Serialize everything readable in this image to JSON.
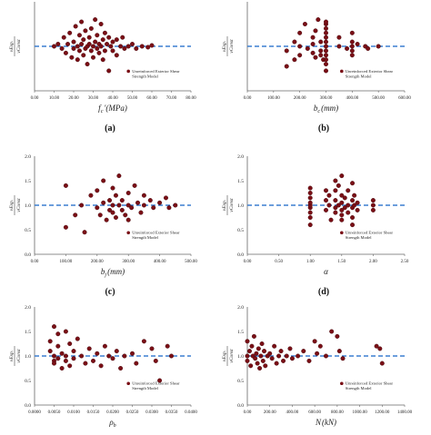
{
  "colors": {
    "point_fill": "#7a0f16",
    "point_stroke": "#3d0509",
    "reference_line": "#3b7fd0",
    "axis": "#666666",
    "text": "#222222"
  },
  "chart_data": [
    {
      "type": "scatter",
      "panel_label": "(a)",
      "xlabel": "f_c′ (MPa)",
      "xlabel_main": "f",
      "xlabel_sub": "c",
      "xlabel_unit": "′(MPa)",
      "ylabel": "v_Exp / v_Const",
      "ylabel_num": "vExp.",
      "ylabel_den": "vConst",
      "legend": "Unreinforced Exterior Shear Strength Model",
      "legend_line1": "Unreinforced Exterior Shear",
      "legend_line2": "Strength Model",
      "xlim": [
        0,
        80
      ],
      "ylim": [
        0,
        2
      ],
      "xticks": [
        "0.00",
        "10.00",
        "20.00",
        "30.00",
        "40.00",
        "50.00",
        "60.00",
        "70.00",
        "80.00"
      ],
      "yticks": [],
      "reference_y": 1.0,
      "points": [
        [
          10,
          1.0
        ],
        [
          12,
          1.05
        ],
        [
          14,
          0.95
        ],
        [
          15,
          1.2
        ],
        [
          16,
          0.85
        ],
        [
          17,
          1.05
        ],
        [
          18,
          1.3
        ],
        [
          19,
          0.75
        ],
        [
          20,
          1.1
        ],
        [
          20,
          0.95
        ],
        [
          21,
          1.45
        ],
        [
          22,
          1.0
        ],
        [
          22,
          0.7
        ],
        [
          23,
          1.25
        ],
        [
          23,
          0.9
        ],
        [
          24,
          1.55
        ],
        [
          24,
          1.05
        ],
        [
          25,
          0.8
        ],
        [
          25,
          1.15
        ],
        [
          26,
          1.35
        ],
        [
          26,
          0.95
        ],
        [
          27,
          1.0
        ],
        [
          27,
          0.6
        ],
        [
          28,
          1.2
        ],
        [
          28,
          1.05
        ],
        [
          29,
          0.9
        ],
        [
          29,
          1.4
        ],
        [
          30,
          1.0
        ],
        [
          30,
          0.75
        ],
        [
          31,
          1.6
        ],
        [
          31,
          1.1
        ],
        [
          32,
          0.95
        ],
        [
          32,
          1.25
        ],
        [
          33,
          0.85
        ],
        [
          33,
          1.05
        ],
        [
          34,
          1.5
        ],
        [
          34,
          1.0
        ],
        [
          35,
          0.7
        ],
        [
          35,
          1.15
        ],
        [
          36,
          1.3
        ],
        [
          36,
          0.9
        ],
        [
          37,
          1.05
        ],
        [
          38,
          0.45
        ],
        [
          38,
          1.2
        ],
        [
          39,
          1.0
        ],
        [
          40,
          0.9
        ],
        [
          40,
          1.1
        ],
        [
          42,
          0.8
        ],
        [
          42,
          1.15
        ],
        [
          44,
          1.0
        ],
        [
          45,
          1.2
        ],
        [
          46,
          0.95
        ],
        [
          48,
          1.0
        ],
        [
          50,
          1.05
        ],
        [
          52,
          0.95
        ],
        [
          55,
          1.0
        ],
        [
          58,
          0.98
        ],
        [
          60,
          1.02
        ]
      ]
    },
    {
      "type": "scatter",
      "panel_label": "(b)",
      "xlabel": "b_c (mm)",
      "xlabel_main": "b",
      "xlabel_sub": "c",
      "xlabel_unit": "(mm)",
      "ylabel": "v_Exp / v_Const",
      "ylabel_num": "vExp.",
      "ylabel_den": "vConst",
      "legend": "Unreinforced Exterior Shear Strength Model",
      "legend_line1": "Unreinforced Exterior Shear",
      "legend_line2": "Strength Model",
      "xlim": [
        0,
        600
      ],
      "ylim": [
        0,
        2
      ],
      "xticks": [
        "0.00",
        "100.00",
        "200.00",
        "300.00",
        "400.00",
        "500.00",
        "600.00"
      ],
      "yticks": [],
      "reference_y": 1.0,
      "points": [
        [
          150,
          0.55
        ],
        [
          150,
          0.9
        ],
        [
          180,
          1.1
        ],
        [
          180,
          0.7
        ],
        [
          200,
          1.3
        ],
        [
          200,
          1.0
        ],
        [
          200,
          0.8
        ],
        [
          220,
          1.5
        ],
        [
          230,
          0.95
        ],
        [
          250,
          1.2
        ],
        [
          250,
          0.85
        ],
        [
          250,
          1.05
        ],
        [
          260,
          0.75
        ],
        [
          260,
          1.35
        ],
        [
          270,
          1.6
        ],
        [
          280,
          0.9
        ],
        [
          280,
          1.1
        ],
        [
          280,
          0.8
        ],
        [
          290,
          0.7
        ],
        [
          300,
          0.6
        ],
        [
          300,
          0.7
        ],
        [
          300,
          0.8
        ],
        [
          300,
          0.9
        ],
        [
          300,
          1.0
        ],
        [
          300,
          1.1
        ],
        [
          300,
          1.2
        ],
        [
          300,
          1.3
        ],
        [
          300,
          1.4
        ],
        [
          300,
          1.5
        ],
        [
          300,
          1.55
        ],
        [
          300,
          0.45
        ],
        [
          350,
          1.0
        ],
        [
          350,
          1.2
        ],
        [
          380,
          0.95
        ],
        [
          400,
          1.3
        ],
        [
          400,
          1.1
        ],
        [
          400,
          0.9
        ],
        [
          400,
          1.0
        ],
        [
          400,
          0.8
        ],
        [
          420,
          1.05
        ],
        [
          450,
          1.0
        ],
        [
          460,
          0.95
        ],
        [
          500,
          1.0
        ]
      ]
    },
    {
      "type": "scatter",
      "panel_label": "(c)",
      "xlabel": "b_j (mm)",
      "xlabel_main": "b",
      "xlabel_sub": "j",
      "xlabel_unit": "(mm)",
      "ylabel": "v_Exp / v_Const",
      "ylabel_num": "vExp.",
      "ylabel_den": "vConst",
      "legend": "Unreinforced Exterior Shear Strength Model",
      "legend_line1": "Unreinforced Exterior Shear",
      "legend_line2": "Strength Model",
      "xlim": [
        0,
        500
      ],
      "ylim": [
        0,
        2
      ],
      "xticks": [
        "0.00",
        "100.00",
        "200.00",
        "300.00",
        "400.00",
        "500.00"
      ],
      "yticks": [
        "0.0",
        "0.5",
        "1.0",
        "1.5",
        "2.0"
      ],
      "reference_y": 1.0,
      "points": [
        [
          100,
          1.4
        ],
        [
          100,
          0.55
        ],
        [
          130,
          0.8
        ],
        [
          150,
          1.0
        ],
        [
          160,
          0.45
        ],
        [
          180,
          1.2
        ],
        [
          200,
          0.95
        ],
        [
          200,
          1.3
        ],
        [
          210,
          0.8
        ],
        [
          220,
          1.5
        ],
        [
          220,
          1.05
        ],
        [
          230,
          0.7
        ],
        [
          240,
          1.1
        ],
        [
          240,
          0.9
        ],
        [
          250,
          1.35
        ],
        [
          250,
          1.0
        ],
        [
          250,
          0.85
        ],
        [
          260,
          0.75
        ],
        [
          260,
          1.2
        ],
        [
          270,
          1.6
        ],
        [
          270,
          1.0
        ],
        [
          280,
          0.9
        ],
        [
          280,
          1.1
        ],
        [
          290,
          0.8
        ],
        [
          300,
          1.25
        ],
        [
          300,
          1.0
        ],
        [
          300,
          0.7
        ],
        [
          310,
          0.95
        ],
        [
          320,
          1.4
        ],
        [
          330,
          1.05
        ],
        [
          340,
          0.85
        ],
        [
          350,
          1.2
        ],
        [
          350,
          1.0
        ],
        [
          370,
          1.1
        ],
        [
          380,
          0.95
        ],
        [
          400,
          1.05
        ],
        [
          420,
          1.15
        ],
        [
          430,
          0.95
        ],
        [
          450,
          1.0
        ]
      ]
    },
    {
      "type": "scatter",
      "panel_label": "(d)",
      "xlabel": "α",
      "xlabel_main": "α",
      "xlabel_sub": "",
      "xlabel_unit": "",
      "ylabel": "v_Exp / v_Const",
      "ylabel_num": "vExp.",
      "ylabel_den": "vConst",
      "legend": "Unreinforced Exterior Shear Strength Model",
      "legend_line1": "Unreinforced Exterior Shear",
      "legend_line2": "Strength Model",
      "xlim": [
        0,
        2.5
      ],
      "ylim": [
        0,
        2
      ],
      "xticks": [
        "0.00",
        "0.50",
        "1.00",
        "1.50",
        "2.00",
        "2.50"
      ],
      "yticks": [
        "0.0",
        "0.5",
        "1.0",
        "1.5",
        "2.0"
      ],
      "reference_y": 1.0,
      "points": [
        [
          1.0,
          0.75
        ],
        [
          1.0,
          0.85
        ],
        [
          1.0,
          0.95
        ],
        [
          1.0,
          1.0
        ],
        [
          1.0,
          1.05
        ],
        [
          1.0,
          1.15
        ],
        [
          1.0,
          1.25
        ],
        [
          1.0,
          1.35
        ],
        [
          1.0,
          0.6
        ],
        [
          1.25,
          1.3
        ],
        [
          1.25,
          1.1
        ],
        [
          1.25,
          0.9
        ],
        [
          1.3,
          1.2
        ],
        [
          1.3,
          1.0
        ],
        [
          1.33,
          0.7
        ],
        [
          1.4,
          1.5
        ],
        [
          1.4,
          1.3
        ],
        [
          1.4,
          1.1
        ],
        [
          1.4,
          0.95
        ],
        [
          1.4,
          0.85
        ],
        [
          1.45,
          1.4
        ],
        [
          1.45,
          1.0
        ],
        [
          1.5,
          1.6
        ],
        [
          1.5,
          1.2
        ],
        [
          1.5,
          1.05
        ],
        [
          1.5,
          0.9
        ],
        [
          1.5,
          0.8
        ],
        [
          1.5,
          0.7
        ],
        [
          1.55,
          1.15
        ],
        [
          1.55,
          0.95
        ],
        [
          1.6,
          1.3
        ],
        [
          1.6,
          1.0
        ],
        [
          1.6,
          0.85
        ],
        [
          1.67,
          1.45
        ],
        [
          1.67,
          1.1
        ],
        [
          1.67,
          0.95
        ],
        [
          1.67,
          0.75
        ],
        [
          1.67,
          0.6
        ],
        [
          1.7,
          1.2
        ],
        [
          1.7,
          1.0
        ],
        [
          1.75,
          0.9
        ],
        [
          1.75,
          1.05
        ],
        [
          2.0,
          1.1
        ],
        [
          2.0,
          0.9
        ],
        [
          2.0,
          1.0
        ]
      ]
    },
    {
      "type": "scatter",
      "panel_label": "",
      "xlabel": "ρ_b",
      "xlabel_main": "ρ",
      "xlabel_sub": "b",
      "xlabel_unit": "",
      "ylabel": "v_Exp / v_Const",
      "ylabel_num": "vExp.",
      "ylabel_den": "vConst",
      "legend": "Unreinforced Exterior Shear Strength Model",
      "legend_line1": "Unreinforced Exterior Shear",
      "legend_line2": "Strength Model",
      "xlim": [
        0,
        0.04
      ],
      "ylim": [
        0,
        2
      ],
      "xticks": [
        "0.0000",
        "0.0050",
        "0.0100",
        "0.0150",
        "0.0200",
        "0.0250",
        "0.0300",
        "0.0350",
        "0.0400"
      ],
      "yticks": [
        "0.0",
        "0.5",
        "1.0",
        "1.5",
        "2.0"
      ],
      "reference_y": 1.0,
      "points": [
        [
          0.004,
          1.3
        ],
        [
          0.004,
          1.1
        ],
        [
          0.005,
          0.9
        ],
        [
          0.005,
          1.6
        ],
        [
          0.005,
          1.0
        ],
        [
          0.005,
          0.85
        ],
        [
          0.006,
          1.2
        ],
        [
          0.006,
          0.95
        ],
        [
          0.006,
          1.45
        ],
        [
          0.007,
          1.05
        ],
        [
          0.007,
          0.75
        ],
        [
          0.008,
          1.5
        ],
        [
          0.008,
          1.0
        ],
        [
          0.008,
          0.9
        ],
        [
          0.009,
          1.25
        ],
        [
          0.009,
          0.8
        ],
        [
          0.01,
          1.1
        ],
        [
          0.01,
          0.95
        ],
        [
          0.011,
          1.35
        ],
        [
          0.012,
          1.0
        ],
        [
          0.013,
          0.85
        ],
        [
          0.014,
          1.15
        ],
        [
          0.015,
          0.9
        ],
        [
          0.016,
          1.05
        ],
        [
          0.017,
          0.8
        ],
        [
          0.018,
          1.2
        ],
        [
          0.019,
          1.0
        ],
        [
          0.02,
          0.95
        ],
        [
          0.021,
          1.1
        ],
        [
          0.022,
          0.75
        ],
        [
          0.023,
          1.0
        ],
        [
          0.025,
          1.05
        ],
        [
          0.026,
          0.85
        ],
        [
          0.028,
          1.3
        ],
        [
          0.03,
          1.15
        ],
        [
          0.031,
          0.9
        ],
        [
          0.032,
          0.5
        ],
        [
          0.034,
          1.2
        ],
        [
          0.035,
          1.0
        ]
      ]
    },
    {
      "type": "scatter",
      "panel_label": "",
      "xlabel": "N (kN)",
      "xlabel_main": "N",
      "xlabel_sub": "",
      "xlabel_unit": "(kN)",
      "ylabel": "v_Exp / v_Const",
      "ylabel_num": "vExp.",
      "ylabel_den": "vConst",
      "legend": "Unreinforced Exterior Shear Strength Model",
      "legend_line1": "Unreinforced Exterior Shear",
      "legend_line2": "Strength Model",
      "xlim": [
        0,
        1400
      ],
      "ylim": [
        0,
        2
      ],
      "xticks": [
        "0.00",
        "200.00",
        "400.00",
        "600.00",
        "800.00",
        "1000.00",
        "1200.00",
        "1400.00"
      ],
      "yticks": [
        "0.0",
        "0.5",
        "1.0",
        "1.5",
        "2.0"
      ],
      "reference_y": 1.0,
      "points": [
        [
          0,
          1.3
        ],
        [
          0,
          1.0
        ],
        [
          0,
          0.9
        ],
        [
          20,
          1.1
        ],
        [
          30,
          0.8
        ],
        [
          40,
          1.2
        ],
        [
          50,
          1.0
        ],
        [
          60,
          1.4
        ],
        [
          70,
          0.95
        ],
        [
          80,
          1.05
        ],
        [
          90,
          0.85
        ],
        [
          100,
          1.15
        ],
        [
          110,
          0.75
        ],
        [
          120,
          1.0
        ],
        [
          130,
          1.25
        ],
        [
          140,
          0.9
        ],
        [
          150,
          1.1
        ],
        [
          160,
          0.8
        ],
        [
          180,
          1.0
        ],
        [
          200,
          1.05
        ],
        [
          220,
          0.95
        ],
        [
          240,
          1.2
        ],
        [
          260,
          0.85
        ],
        [
          280,
          1.0
        ],
        [
          300,
          1.1
        ],
        [
          320,
          0.9
        ],
        [
          350,
          1.0
        ],
        [
          380,
          1.15
        ],
        [
          400,
          0.95
        ],
        [
          450,
          1.0
        ],
        [
          500,
          1.1
        ],
        [
          550,
          0.9
        ],
        [
          600,
          1.3
        ],
        [
          620,
          1.05
        ],
        [
          650,
          1.2
        ],
        [
          700,
          1.0
        ],
        [
          750,
          1.5
        ],
        [
          800,
          1.4
        ],
        [
          820,
          1.1
        ],
        [
          850,
          0.95
        ],
        [
          1150,
          1.2
        ],
        [
          1180,
          1.15
        ],
        [
          1200,
          0.85
        ]
      ]
    }
  ]
}
